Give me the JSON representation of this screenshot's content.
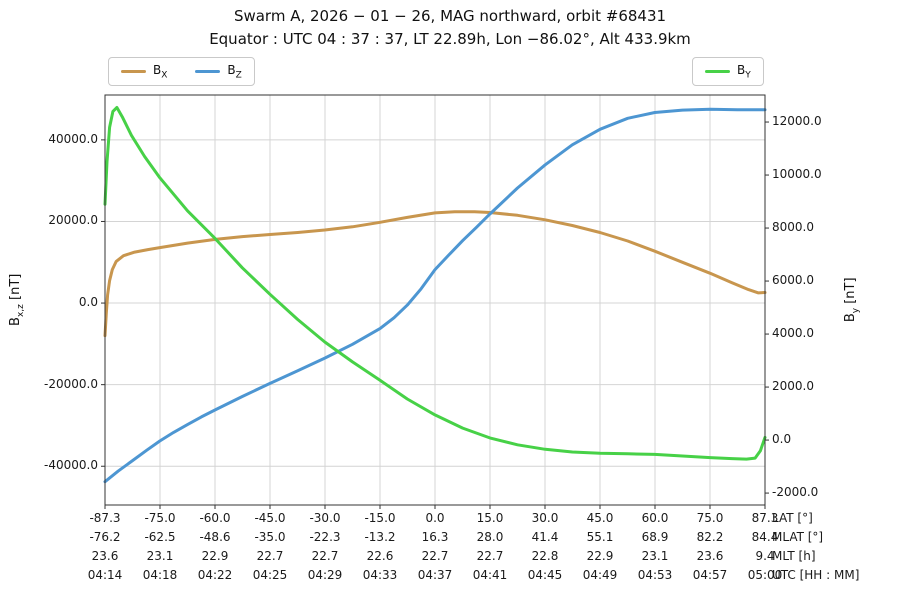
{
  "chart_data": {
    "type": "line",
    "title": "Swarm A,  2026 − 01 − 26,  MAG northward,  orbit #68431",
    "subtitle": "Equator :  UTC 04 : 37 : 37,  LT 22.89h,  Lon  −86.02°,  Alt 433.9km",
    "grid": true,
    "legend_position": "top",
    "left_axis": {
      "label": "B_x,z [nT]",
      "ticks": [
        40000,
        20000,
        0,
        -20000,
        -40000
      ],
      "range": [
        -49500,
        51000
      ]
    },
    "right_axis": {
      "label": "B_y [nT]",
      "ticks": [
        12000,
        10000,
        8000,
        6000,
        4000,
        2000,
        0,
        -2000
      ],
      "range": [
        -2450,
        13020
      ]
    },
    "x_rows": [
      {
        "label": "LAT [°]",
        "values": [
          "-87.3",
          "-75.0",
          "-60.0",
          "-45.0",
          "-30.0",
          "-15.0",
          "0.0",
          "15.0",
          "30.0",
          "45.0",
          "60.0",
          "75.0",
          "87.3"
        ]
      },
      {
        "label": "MLAT [°]",
        "values": [
          "-76.2",
          "-62.5",
          "-48.6",
          "-35.0",
          "-22.3",
          "-13.2",
          "16.3",
          "28.0",
          "41.4",
          "55.1",
          "68.9",
          "82.2",
          "84.4"
        ]
      },
      {
        "label": "MLT [h]",
        "values": [
          "23.6",
          "23.1",
          "22.9",
          "22.7",
          "22.7",
          "22.6",
          "22.7",
          "22.7",
          "22.8",
          "22.9",
          "23.1",
          "23.6",
          "9.4"
        ]
      },
      {
        "label": "UTC [HH : MM]",
        "values": [
          "04:14",
          "04:18",
          "04:22",
          "04:25",
          "04:29",
          "04:33",
          "04:37",
          "04:41",
          "04:45",
          "04:49",
          "04:53",
          "04:57",
          "05:00"
        ]
      }
    ],
    "series": [
      {
        "name": "B_X",
        "axis": "left",
        "color": "#c8964e",
        "points": [
          [
            0.0,
            -8000
          ],
          [
            0.002,
            -2500
          ],
          [
            0.004,
            2000
          ],
          [
            0.007,
            5500
          ],
          [
            0.011,
            8200
          ],
          [
            0.017,
            10200
          ],
          [
            0.028,
            11600
          ],
          [
            0.045,
            12500
          ],
          [
            0.065,
            13100
          ],
          [
            0.083,
            13600
          ],
          [
            0.125,
            14700
          ],
          [
            0.167,
            15600
          ],
          [
            0.208,
            16300
          ],
          [
            0.25,
            16800
          ],
          [
            0.292,
            17300
          ],
          [
            0.333,
            17900
          ],
          [
            0.375,
            18700
          ],
          [
            0.417,
            19800
          ],
          [
            0.458,
            21000
          ],
          [
            0.5,
            22100
          ],
          [
            0.53,
            22400
          ],
          [
            0.56,
            22400
          ],
          [
            0.583,
            22200
          ],
          [
            0.625,
            21500
          ],
          [
            0.667,
            20400
          ],
          [
            0.708,
            19000
          ],
          [
            0.75,
            17300
          ],
          [
            0.792,
            15200
          ],
          [
            0.833,
            12700
          ],
          [
            0.875,
            10000
          ],
          [
            0.917,
            7300
          ],
          [
            0.95,
            5000
          ],
          [
            0.975,
            3300
          ],
          [
            0.99,
            2500
          ],
          [
            1.0,
            2600
          ]
        ]
      },
      {
        "name": "B_Z",
        "axis": "left",
        "color": "#4d96d2",
        "points": [
          [
            0.0,
            -43800
          ],
          [
            0.02,
            -41200
          ],
          [
            0.042,
            -38600
          ],
          [
            0.063,
            -36100
          ],
          [
            0.083,
            -33800
          ],
          [
            0.104,
            -31700
          ],
          [
            0.125,
            -29800
          ],
          [
            0.146,
            -27900
          ],
          [
            0.167,
            -26200
          ],
          [
            0.208,
            -22900
          ],
          [
            0.25,
            -19700
          ],
          [
            0.292,
            -16600
          ],
          [
            0.333,
            -13500
          ],
          [
            0.375,
            -10100
          ],
          [
            0.417,
            -6200
          ],
          [
            0.438,
            -3600
          ],
          [
            0.458,
            -500
          ],
          [
            0.479,
            3500
          ],
          [
            0.5,
            8200
          ],
          [
            0.521,
            11800
          ],
          [
            0.542,
            15300
          ],
          [
            0.563,
            18600
          ],
          [
            0.583,
            21800
          ],
          [
            0.625,
            28200
          ],
          [
            0.667,
            33900
          ],
          [
            0.708,
            38800
          ],
          [
            0.75,
            42600
          ],
          [
            0.792,
            45300
          ],
          [
            0.833,
            46700
          ],
          [
            0.875,
            47300
          ],
          [
            0.917,
            47500
          ],
          [
            0.958,
            47400
          ],
          [
            1.0,
            47400
          ]
        ]
      },
      {
        "name": "B_Y",
        "axis": "right",
        "color": "#47d147",
        "points": [
          [
            0.0,
            8900
          ],
          [
            0.003,
            10500
          ],
          [
            0.007,
            11800
          ],
          [
            0.012,
            12400
          ],
          [
            0.018,
            12550
          ],
          [
            0.026,
            12200
          ],
          [
            0.04,
            11500
          ],
          [
            0.06,
            10700
          ],
          [
            0.083,
            9900
          ],
          [
            0.125,
            8650
          ],
          [
            0.167,
            7600
          ],
          [
            0.208,
            6500
          ],
          [
            0.25,
            5500
          ],
          [
            0.292,
            4550
          ],
          [
            0.333,
            3700
          ],
          [
            0.375,
            2950
          ],
          [
            0.417,
            2250
          ],
          [
            0.458,
            1550
          ],
          [
            0.5,
            950
          ],
          [
            0.542,
            450
          ],
          [
            0.583,
            80
          ],
          [
            0.625,
            -180
          ],
          [
            0.667,
            -350
          ],
          [
            0.708,
            -450
          ],
          [
            0.75,
            -500
          ],
          [
            0.792,
            -520
          ],
          [
            0.833,
            -540
          ],
          [
            0.875,
            -600
          ],
          [
            0.917,
            -660
          ],
          [
            0.95,
            -700
          ],
          [
            0.972,
            -720
          ],
          [
            0.985,
            -680
          ],
          [
            0.993,
            -400
          ],
          [
            1.0,
            100
          ]
        ]
      }
    ]
  },
  "legend": {
    "left": [
      {
        "name": "B",
        "sub": "X",
        "color": "#c8964e"
      },
      {
        "name": "B",
        "sub": "Z",
        "color": "#4d96d2"
      }
    ],
    "right": [
      {
        "name": "B",
        "sub": "Y",
        "color": "#47d147"
      }
    ]
  },
  "axes": {
    "left_label": {
      "prefix": "B",
      "sub": "x,z",
      "suffix": " [nT]"
    },
    "right_label": {
      "prefix": "B",
      "sub": "y",
      "suffix": " [nT]"
    }
  },
  "style": {
    "grid_color": "#d4d4d4",
    "frame_color": "#333333",
    "line_width": 3
  }
}
